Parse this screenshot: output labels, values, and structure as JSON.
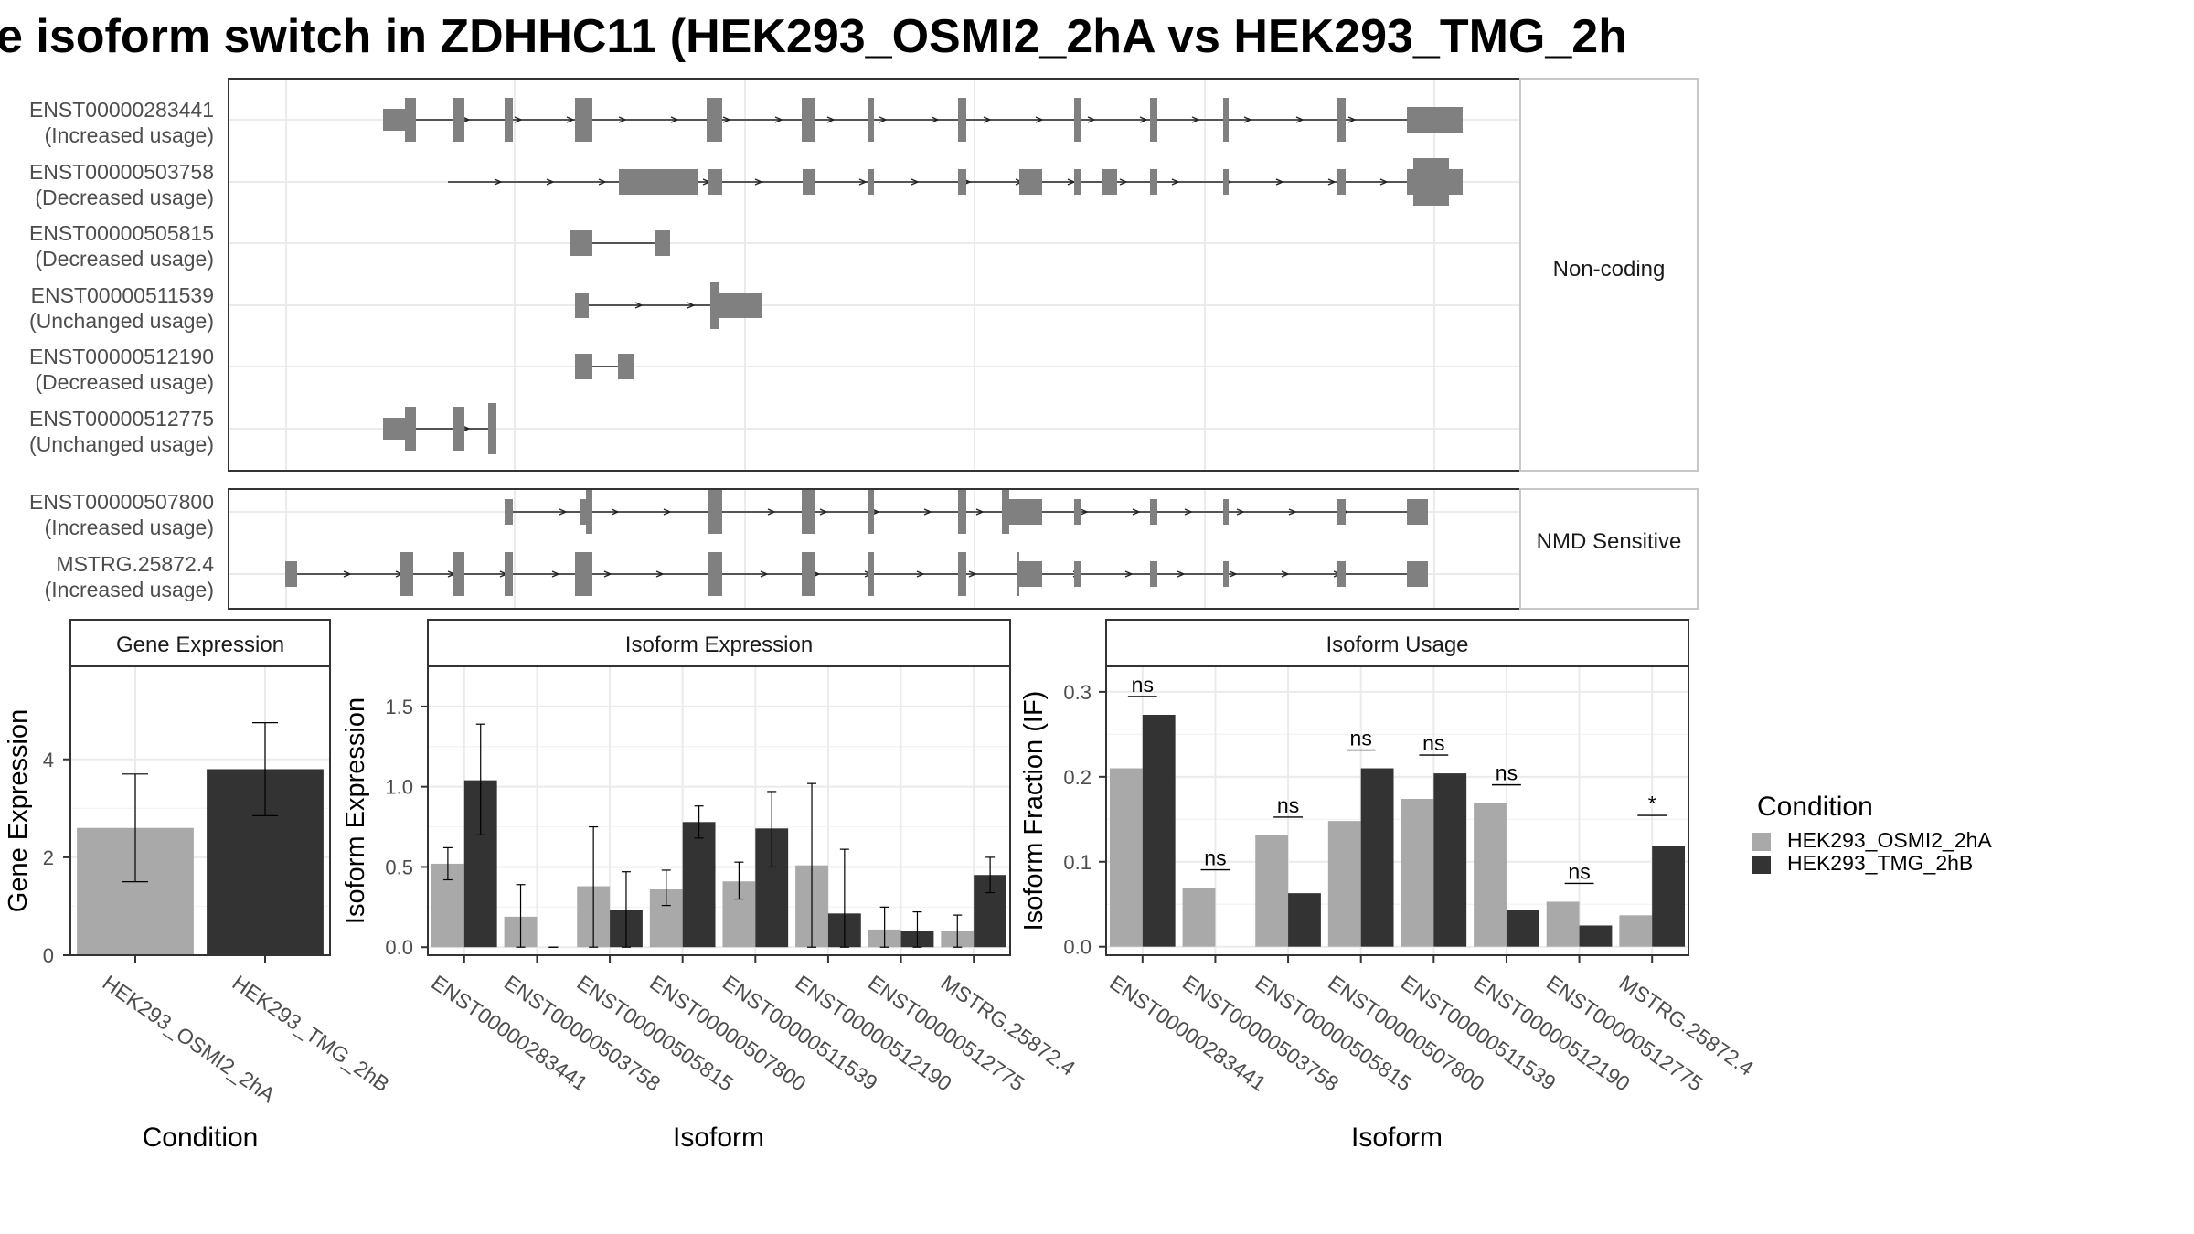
{
  "title": "e isoform switch in ZDHHC11 (HEK293_OSMI2_2hA vs HEK293_TMG_2h",
  "colors": {
    "exon": "#808080",
    "bar_a": "#a9a9a9",
    "bar_b": "#333333",
    "strip_bg": "#ffffff",
    "grid": "#ebebeb",
    "panel_border": "#333333",
    "text": "#000000",
    "label": "#4d4d4d"
  },
  "structure": {
    "groups": [
      {
        "label": "Non-coding",
        "transcripts": [
          {
            "id": "ENST00000283441",
            "usage": "(Increased usage)"
          },
          {
            "id": "ENST00000503758",
            "usage": "(Decreased usage)"
          },
          {
            "id": "ENST00000505815",
            "usage": "(Decreased usage)"
          },
          {
            "id": "ENST00000511539",
            "usage": "(Unchanged usage)"
          },
          {
            "id": "ENST00000512190",
            "usage": "(Decreased usage)"
          },
          {
            "id": "ENST00000512775",
            "usage": "(Unchanged usage)"
          }
        ]
      },
      {
        "label": "NMD Sensitive",
        "transcripts": [
          {
            "id": "ENST00000507800",
            "usage": "(Increased usage)"
          },
          {
            "id": "MSTRG.25872.4",
            "usage": "(Increased usage)"
          }
        ]
      }
    ]
  },
  "chart_data": [
    {
      "type": "bar",
      "title": "Gene Expression",
      "xlabel": "Condition",
      "ylabel": "Gene Expression",
      "ylim": [
        0,
        5.9
      ],
      "yticks": [
        0,
        2,
        4
      ],
      "categories": [
        "HEK293_OSMI2_2hA",
        "HEK293_TMG_2hB"
      ],
      "values": [
        2.6,
        3.8
      ],
      "error_low": [
        1.5,
        2.85
      ],
      "error_high": [
        3.7,
        4.75
      ]
    },
    {
      "type": "bar",
      "title": "Isoform Expression",
      "xlabel": "Isoform",
      "ylabel": "Isoform Expression",
      "ylim": [
        -0.05,
        1.75
      ],
      "yticks": [
        0.0,
        0.5,
        1.0,
        1.5
      ],
      "categories": [
        "ENST00000283441",
        "ENST00000503758",
        "ENST00000505815",
        "ENST00000507800",
        "ENST00000511539",
        "ENST00000512190",
        "ENST00000512775",
        "MSTRG.25872.4"
      ],
      "series": [
        {
          "name": "HEK293_OSMI2_2hA",
          "values": [
            0.52,
            0.19,
            0.38,
            0.36,
            0.41,
            0.51,
            0.11,
            0.1
          ],
          "error_low": [
            0.42,
            0.0,
            0.0,
            0.26,
            0.3,
            0.0,
            0.0,
            0.0
          ],
          "error_high": [
            0.62,
            0.39,
            0.75,
            0.48,
            0.53,
            1.02,
            0.25,
            0.2
          ]
        },
        {
          "name": "HEK293_TMG_2hB",
          "values": [
            1.04,
            0.0,
            0.23,
            0.78,
            0.74,
            0.21,
            0.1,
            0.45
          ],
          "error_low": [
            0.7,
            0.0,
            0.0,
            0.68,
            0.5,
            0.0,
            0.0,
            0.34
          ],
          "error_high": [
            1.39,
            0.0,
            0.47,
            0.88,
            0.97,
            0.61,
            0.22,
            0.56
          ]
        }
      ]
    },
    {
      "type": "bar",
      "title": "Isoform Usage",
      "xlabel": "Isoform",
      "ylabel": "Isoform Fraction (IF)",
      "ylim": [
        -0.01,
        0.33
      ],
      "yticks": [
        0.0,
        0.1,
        0.2,
        0.3
      ],
      "categories": [
        "ENST00000283441",
        "ENST00000503758",
        "ENST00000505815",
        "ENST00000507800",
        "ENST00000511539",
        "ENST00000512190",
        "ENST00000512775",
        "MSTRG.25872.4"
      ],
      "series": [
        {
          "name": "HEK293_OSMI2_2hA",
          "values": [
            0.21,
            0.069,
            0.131,
            0.148,
            0.174,
            0.169,
            0.053,
            0.037
          ]
        },
        {
          "name": "HEK293_TMG_2hB",
          "values": [
            0.273,
            0.0,
            0.063,
            0.21,
            0.204,
            0.043,
            0.025,
            0.119
          ]
        }
      ],
      "significance": [
        "ns",
        "ns",
        "ns",
        "ns",
        "ns",
        "ns",
        "ns",
        "*"
      ]
    }
  ],
  "legend": {
    "title": "Condition",
    "items": [
      "HEK293_OSMI2_2hA",
      "HEK293_TMG_2hB"
    ]
  }
}
